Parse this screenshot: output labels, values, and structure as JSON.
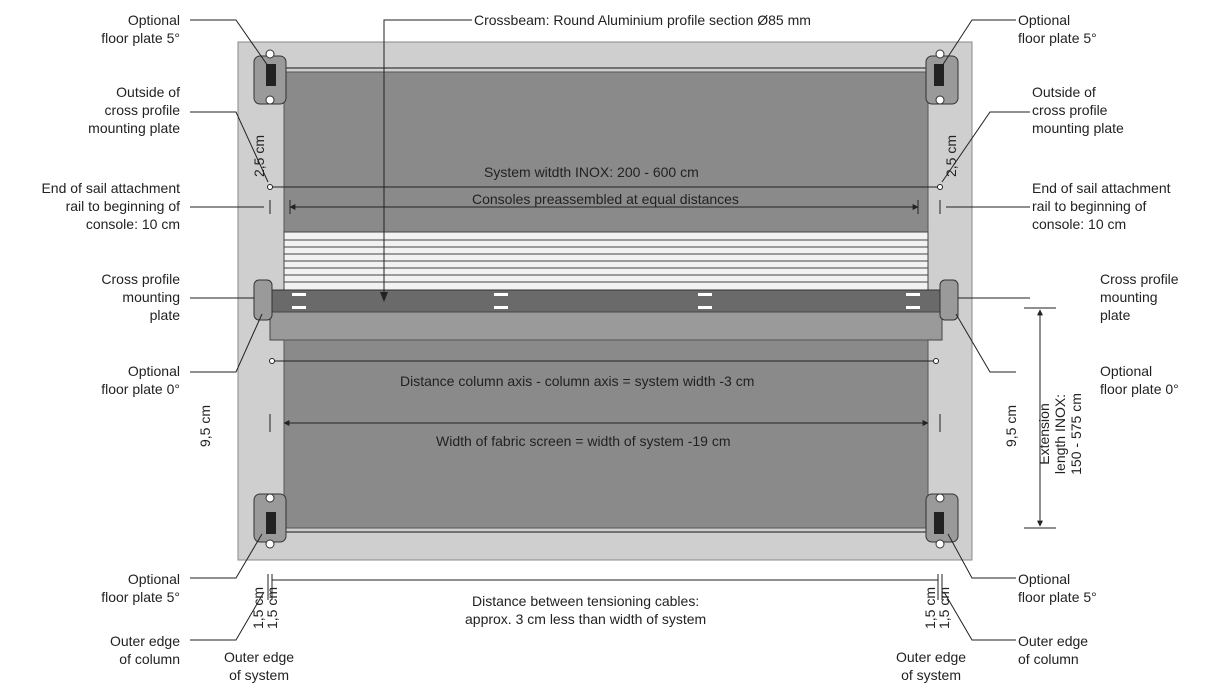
{
  "colors": {
    "ground": "#cfcfcf",
    "fabric": "#8a8a8a",
    "crossbeam": "#6a6a6a",
    "slats": "#f2f2f2",
    "plate": "#9a9a9a",
    "line": "#222222"
  },
  "labels": {
    "crossbeam": "Crossbeam: Round Aluminium profile section Ø85 mm",
    "floor_plate_5_tl": [
      "Optional",
      "floor plate 5°"
    ],
    "floor_plate_5_tr": [
      "Optional",
      "floor plate 5°"
    ],
    "floor_plate_5_bl": [
      "Optional",
      "floor plate 5°"
    ],
    "floor_plate_5_br": [
      "Optional",
      "floor plate 5°"
    ],
    "outside_cross_left": [
      "Outside of",
      "cross profile",
      "mounting plate"
    ],
    "outside_cross_right": [
      "Outside of",
      "cross profile",
      "mounting plate"
    ],
    "sail_rail_left": [
      "End of sail attachment",
      "rail to beginning of",
      "console: 10 cm"
    ],
    "sail_rail_right": [
      "End of sail attachment",
      "rail to beginning of",
      "console: 10 cm"
    ],
    "cross_plate_left": [
      "Cross profile",
      "mounting",
      "plate"
    ],
    "cross_plate_right": [
      "Cross profile",
      "mounting",
      "plate"
    ],
    "floor_plate_0_left": [
      "Optional",
      "floor plate 0°"
    ],
    "floor_plate_0_right": [
      "Optional",
      "floor plate 0°"
    ],
    "outer_edge_column_left": [
      "Outer edge",
      "of column"
    ],
    "outer_edge_column_right": [
      "Outer edge",
      "of column"
    ],
    "outer_edge_system_left": [
      "Outer edge",
      "of system"
    ],
    "outer_edge_system_right": [
      "Outer edge",
      "of system"
    ]
  },
  "dimensions": {
    "system_width": "System witdth INOX: 200 - 600 cm",
    "consoles": "Consoles preassembled at equal distances",
    "column_axis": "Distance column axis - column axis = system width -3 cm",
    "fabric_width": "Width of fabric screen = width of system -19 cm",
    "cables": [
      "Distance between tensioning cables:",
      "approx. 3 cm less than width of system"
    ],
    "offset_2_5_left": "2,5 cm",
    "offset_2_5_right": "2,5 cm",
    "offset_9_5_left": "9,5 cm",
    "offset_9_5_right": "9,5 cm",
    "offset_1_5_a_left": "1,5 cm",
    "offset_1_5_b_left": "1,5 cm",
    "offset_1_5_a_right": "1,5 cm",
    "offset_1_5_b_right": "1,5 cm",
    "extension": [
      "Extension",
      "length INOX:",
      "150 - 575 cm"
    ]
  }
}
